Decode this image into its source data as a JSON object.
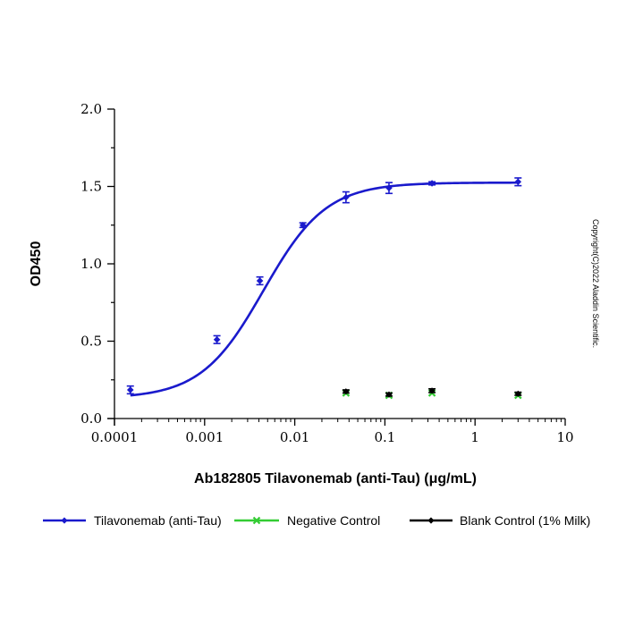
{
  "chart_data": {
    "type": "scatter",
    "xlabel": "Ab182805 Tilavonemab (anti-Tau) (μg/mL)",
    "ylabel": "OD450",
    "x_scale": "log",
    "xlim": [
      0.0001,
      10
    ],
    "ylim": [
      0,
      2.0
    ],
    "x_ticks": [
      "0.0001",
      "0.001",
      "0.01",
      "0.1",
      "1",
      "10"
    ],
    "y_ticks": [
      "0.0",
      "0.5",
      "1.0",
      "1.5",
      "2.0"
    ],
    "grid": false,
    "legend": "bottom",
    "series": [
      {
        "name": "Tilavonemab (anti-Tau)",
        "color": "#1a1acc",
        "marker": "diamond",
        "fit": "4PL",
        "fit_params": {
          "bottom": 0.13,
          "top": 1.525,
          "ec50": 0.0045,
          "hill": 1.25
        },
        "points": [
          {
            "x": 0.00015,
            "y": 0.185,
            "err": 0.025
          },
          {
            "x": 0.00137,
            "y": 0.51,
            "err": 0.025
          },
          {
            "x": 0.0041,
            "y": 0.89,
            "err": 0.025
          },
          {
            "x": 0.0123,
            "y": 1.25,
            "err": 0.015
          },
          {
            "x": 0.037,
            "y": 1.43,
            "err": 0.035
          },
          {
            "x": 0.111,
            "y": 1.49,
            "err": 0.035
          },
          {
            "x": 0.333,
            "y": 1.52,
            "err": 0.01
          },
          {
            "x": 3.0,
            "y": 1.53,
            "err": 0.025
          }
        ]
      },
      {
        "name": "Negative Control",
        "color": "#33cc33",
        "marker": "x",
        "points": [
          {
            "x": 0.037,
            "y": 0.165
          },
          {
            "x": 0.111,
            "y": 0.15
          },
          {
            "x": 0.333,
            "y": 0.165
          },
          {
            "x": 3.0,
            "y": 0.15
          }
        ]
      },
      {
        "name": "Blank Control (1% Milk)",
        "color": "#000000",
        "marker": "diamond",
        "points": [
          {
            "x": 0.037,
            "y": 0.175,
            "err": 0.01
          },
          {
            "x": 0.111,
            "y": 0.155,
            "err": 0.01
          },
          {
            "x": 0.333,
            "y": 0.18,
            "err": 0.012
          },
          {
            "x": 3.0,
            "y": 0.16,
            "err": 0.01
          }
        ]
      }
    ]
  },
  "copyright": "Copyright(C)2022 Aladdin Scientific."
}
